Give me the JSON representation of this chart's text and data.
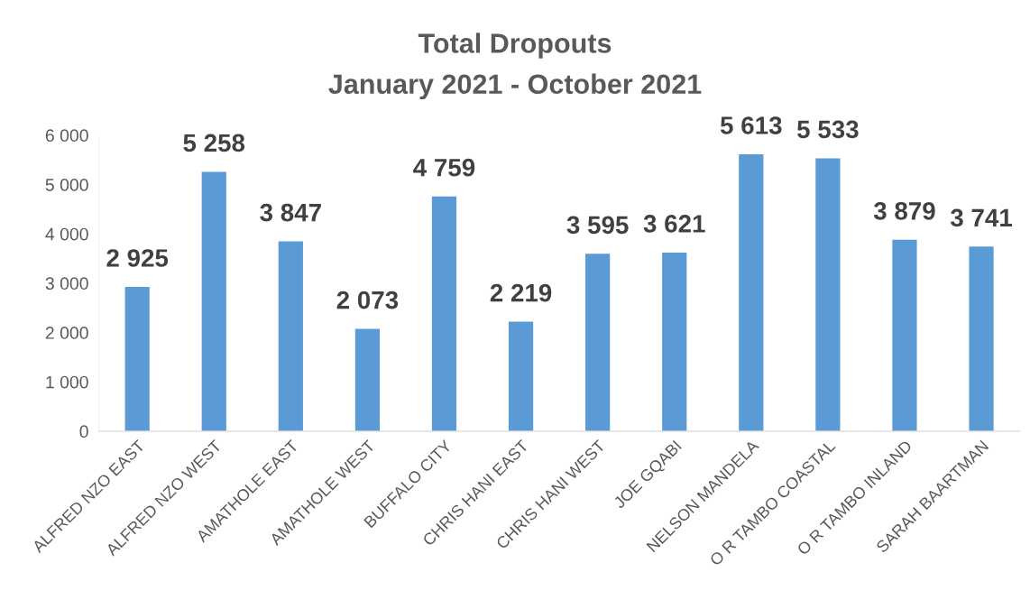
{
  "chart_data": {
    "type": "bar",
    "title": "Total Dropouts",
    "subtitle": "January 2021 - October 2021",
    "categories": [
      "ALFRED NZO EAST",
      "ALFRED NZO WEST",
      "AMATHOLE EAST",
      "AMATHOLE WEST",
      "BUFFALO CITY",
      "CHRIS HANI EAST",
      "CHRIS HANI WEST",
      "JOE GQABI",
      "NELSON MANDELA",
      "O R TAMBO COASTAL",
      "O R TAMBO INLAND",
      "SARAH BAARTMAN"
    ],
    "values": [
      2925,
      5258,
      3847,
      2073,
      4759,
      2219,
      3595,
      3621,
      5613,
      5533,
      3879,
      3741
    ],
    "value_labels": [
      "2 925",
      "5 258",
      "3 847",
      "2 073",
      "4 759",
      "2 219",
      "3 595",
      "3 621",
      "5 613",
      "5 533",
      "3 879",
      "3 741"
    ],
    "color": "#5b9bd5",
    "ylim": [
      0,
      6000
    ],
    "yticks": [
      0,
      {
        "value": 1000,
        "label": "1 000"
      },
      {
        "value": 2000,
        "label": "2 000"
      },
      {
        "value": 3000,
        "label": "3 000"
      },
      {
        "value": 4000,
        "label": "4 000"
      },
      {
        "value": 5000,
        "label": "5 000"
      },
      {
        "value": 6000,
        "label": "6 000"
      }
    ],
    "grid": false,
    "legend": false
  }
}
